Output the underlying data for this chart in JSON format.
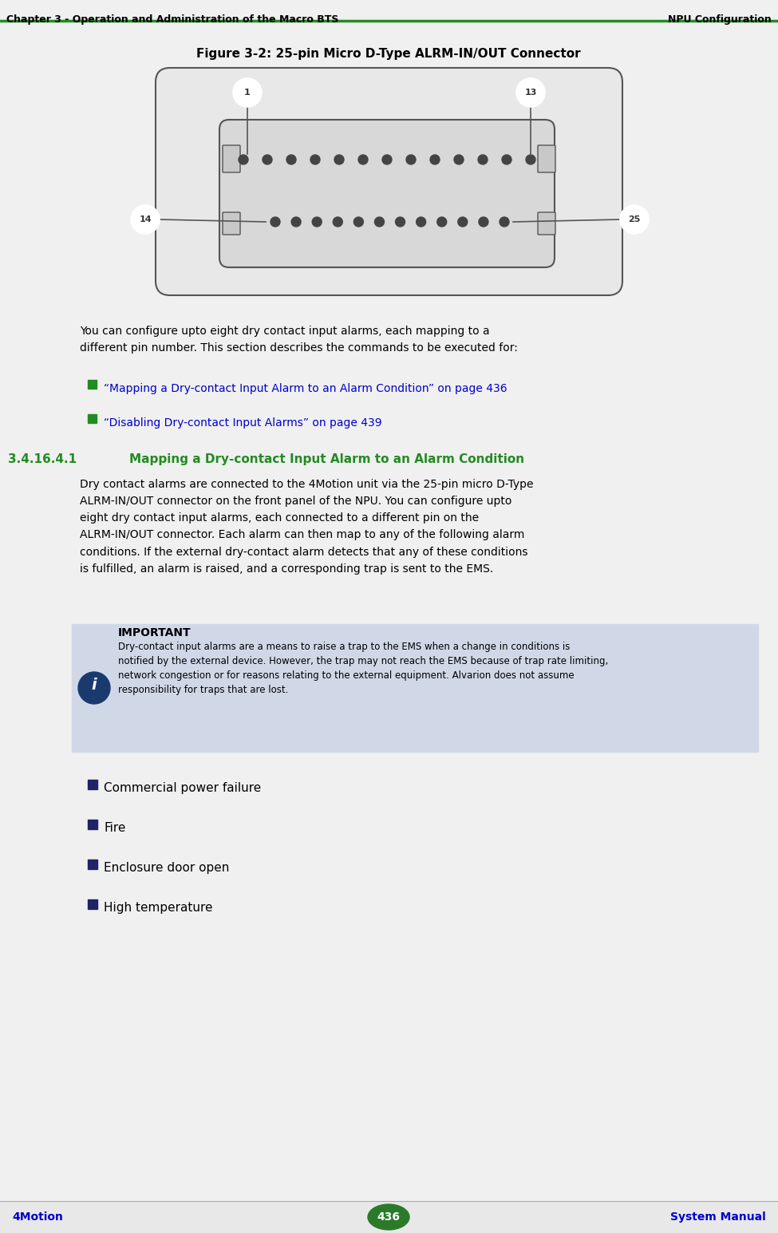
{
  "bg_color": "#f0f0f0",
  "white": "#ffffff",
  "header_line_color": "#228B22",
  "header_left": "Chapter 3 - Operation and Administration of the Macro BTS",
  "header_right": "NPU Configuration",
  "footer_left": "4Motion",
  "footer_center": "436",
  "footer_right": "System Manual",
  "footer_bg": "#e8e8e8",
  "figure_title": "Figure 3-2: 25-pin Micro D-Type ALRM-IN/OUT Connector",
  "section_number": "3.4.16.4.1",
  "section_title": "Mapping a Dry-contact Input Alarm to an Alarm Condition",
  "blue_link_color": "#0000CD",
  "section_title_color": "#228B22",
  "important_bg": "#d0d8e8",
  "important_header": "IMPORTANT",
  "body_text_color": "#000000",
  "link1": "“Mapping a Dry-contact Input Alarm to an Alarm Condition” on page 436",
  "link2": "“Disabling Dry-contact Input Alarms” on page 439",
  "important_body": "Dry-contact input alarms are a means to raise a trap to the EMS when a change in conditions is\nnotified by the external device. However, the trap may not reach the EMS because of trap rate limiting,\nnetwork congestion or for reasons relating to the external equipment. Alvarion does not assume\nresponsibility for traps that are lost.",
  "bullet_items": [
    "Commercial power failure",
    "Fire",
    "Enclosure door open",
    "High temperature"
  ]
}
